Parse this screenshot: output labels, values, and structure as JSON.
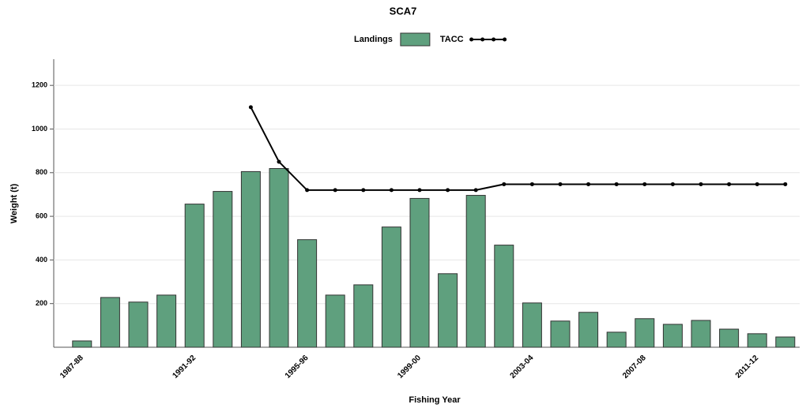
{
  "chart_data": {
    "type": "bar",
    "title": "SCA7",
    "x_label": "Fishing Year",
    "y_label": "Weight (t)",
    "categories": [
      "1987-88",
      null,
      null,
      null,
      "1991-92",
      null,
      null,
      null,
      "1995-96",
      null,
      null,
      null,
      "1999-00",
      null,
      null,
      null,
      "2003-04",
      null,
      null,
      null,
      "2007-08",
      null,
      null,
      null,
      "2011-12",
      null
    ],
    "series": [
      {
        "name": "Landings",
        "type": "bar",
        "color": "#5fa07e",
        "values": [
          29,
          228,
          207,
          239,
          656,
          714,
          805,
          819,
          493,
          239,
          286,
          551,
          682,
          337,
          696,
          468,
          203,
          120,
          160,
          69,
          131,
          105,
          123,
          83,
          62,
          47
        ]
      },
      {
        "name": "TACC",
        "type": "line",
        "color": "#000000",
        "values": [
          null,
          null,
          null,
          null,
          null,
          null,
          1100,
          850,
          720,
          720,
          720,
          720,
          720,
          720,
          720,
          747,
          747,
          747,
          747,
          747,
          747,
          747,
          747,
          747,
          747,
          747
        ]
      }
    ],
    "ylim": [
      0,
      1320
    ],
    "yticks": [
      200,
      400,
      600,
      800,
      1000,
      1200
    ],
    "grid": true,
    "legend": "top"
  }
}
